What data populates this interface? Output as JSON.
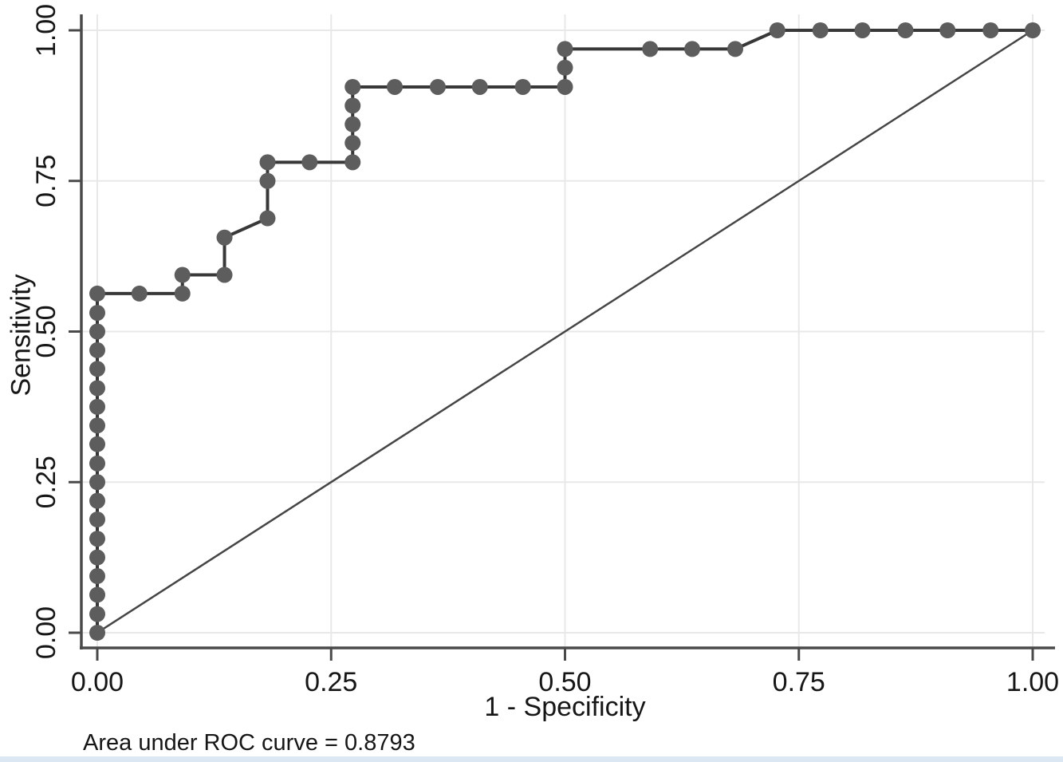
{
  "figure": {
    "bottom_strip_color": "#dbe8f4",
    "background": "#ffffff",
    "text_color": "#161616",
    "gridline_color": "#e8e8e8",
    "axis_color": "#4a4a4a"
  },
  "chart_data": {
    "type": "line",
    "subtype": "roc-step-curve",
    "title": "",
    "xlabel": "1 - Specificity",
    "ylabel": "Sensitivity",
    "caption": "Area under ROC curve = 0.8793",
    "auc_value": "0.8793",
    "xlim": [
      0,
      1
    ],
    "ylim": [
      0,
      1
    ],
    "grid": true,
    "legend": "none",
    "x_tick_labels": [
      "0.00",
      "0.25",
      "0.50",
      "0.75",
      "1.00"
    ],
    "x_tick_values": [
      0,
      0.25,
      0.5,
      0.75,
      1
    ],
    "y_tick_labels": [
      "0.00",
      "0.25",
      "0.50",
      "0.75",
      "1.00"
    ],
    "y_tick_values": [
      0,
      0.25,
      0.5,
      0.75,
      1
    ],
    "series": [
      {
        "name": "ROC curve (1-Specificity vs Sensitivity)",
        "style": "step-line-with-markers",
        "marker_color": "#5d5d5d",
        "line_color": "#383838",
        "points": [
          [
            0,
            0
          ],
          [
            0,
            0.031
          ],
          [
            0,
            0.063
          ],
          [
            0,
            0.094
          ],
          [
            0,
            0.125
          ],
          [
            0,
            0.156
          ],
          [
            0,
            0.188
          ],
          [
            0,
            0.219
          ],
          [
            0,
            0.25
          ],
          [
            0,
            0.281
          ],
          [
            0,
            0.313
          ],
          [
            0,
            0.344
          ],
          [
            0,
            0.375
          ],
          [
            0,
            0.406
          ],
          [
            0,
            0.438
          ],
          [
            0,
            0.469
          ],
          [
            0,
            0.5
          ],
          [
            0,
            0.531
          ],
          [
            0,
            0.563
          ],
          [
            0.045,
            0.563
          ],
          [
            0.091,
            0.563
          ],
          [
            0.091,
            0.594
          ],
          [
            0.136,
            0.594
          ],
          [
            0.136,
            0.656
          ],
          [
            0.182,
            0.688
          ],
          [
            0.182,
            0.75
          ],
          [
            0.182,
            0.781
          ],
          [
            0.227,
            0.781
          ],
          [
            0.273,
            0.781
          ],
          [
            0.273,
            0.813
          ],
          [
            0.273,
            0.844
          ],
          [
            0.273,
            0.875
          ],
          [
            0.273,
            0.906
          ],
          [
            0.318,
            0.906
          ],
          [
            0.364,
            0.906
          ],
          [
            0.409,
            0.906
          ],
          [
            0.455,
            0.906
          ],
          [
            0.5,
            0.906
          ],
          [
            0.5,
            0.938
          ],
          [
            0.5,
            0.969
          ],
          [
            0.591,
            0.969
          ],
          [
            0.636,
            0.969
          ],
          [
            0.682,
            0.969
          ],
          [
            0.727,
            1
          ],
          [
            0.773,
            1
          ],
          [
            0.818,
            1
          ],
          [
            0.864,
            1
          ],
          [
            0.909,
            1
          ],
          [
            0.955,
            1
          ],
          [
            1,
            1
          ]
        ]
      },
      {
        "name": "Reference (chance) diagonal",
        "style": "line",
        "line_color": "#454545",
        "points": [
          [
            0,
            0
          ],
          [
            1,
            1
          ]
        ]
      }
    ]
  }
}
